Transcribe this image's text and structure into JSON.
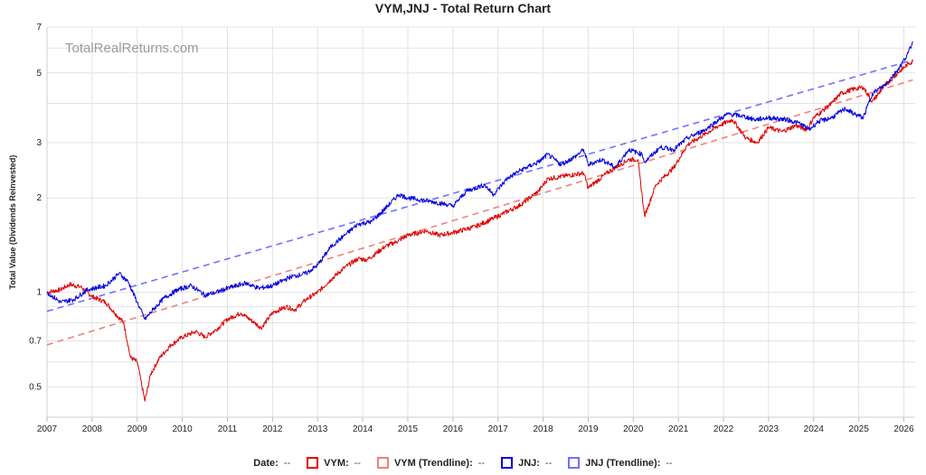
{
  "chart_data": {
    "type": "line",
    "title": "VYM,JNJ - Total Return Chart",
    "watermark": "TotalRealReturns.com",
    "ylabel": "Total Value (Dividends Reinvested)",
    "xlabel": "",
    "yscale": "log",
    "ylim": [
      0.4,
      7
    ],
    "xlim": [
      2007.0,
      2026.25
    ],
    "x_ticks": [
      "2007",
      "2008",
      "2009",
      "2010",
      "2011",
      "2012",
      "2013",
      "2014",
      "2015",
      "2016",
      "2017",
      "2018",
      "2019",
      "2020",
      "2021",
      "2022",
      "2023",
      "2024",
      "2025",
      "2026"
    ],
    "y_ticks": [
      {
        "value": 0.5,
        "label": "0.5"
      },
      {
        "value": 0.7,
        "label": "0.7"
      },
      {
        "value": 1,
        "label": "1"
      },
      {
        "value": 2,
        "label": "2"
      },
      {
        "value": 3,
        "label": "3"
      },
      {
        "value": 5,
        "label": "5"
      },
      {
        "value": 7,
        "label": "7"
      }
    ],
    "y_gridlines": [
      0.5,
      0.6,
      0.7,
      0.8,
      0.9,
      1,
      2,
      3,
      4,
      5,
      6,
      7
    ],
    "series": [
      {
        "name": "VYM",
        "color": "#e00000",
        "style": "solid",
        "points": [
          [
            2007.0,
            1.0
          ],
          [
            2007.3,
            1.02
          ],
          [
            2007.5,
            1.06
          ],
          [
            2007.75,
            1.04
          ],
          [
            2008.0,
            0.97
          ],
          [
            2008.3,
            0.93
          ],
          [
            2008.5,
            0.86
          ],
          [
            2008.7,
            0.8
          ],
          [
            2008.85,
            0.62
          ],
          [
            2009.0,
            0.6
          ],
          [
            2009.17,
            0.45
          ],
          [
            2009.3,
            0.55
          ],
          [
            2009.5,
            0.62
          ],
          [
            2009.75,
            0.68
          ],
          [
            2010.0,
            0.72
          ],
          [
            2010.3,
            0.75
          ],
          [
            2010.5,
            0.72
          ],
          [
            2010.75,
            0.76
          ],
          [
            2011.0,
            0.82
          ],
          [
            2011.3,
            0.86
          ],
          [
            2011.6,
            0.8
          ],
          [
            2011.75,
            0.77
          ],
          [
            2012.0,
            0.86
          ],
          [
            2012.3,
            0.9
          ],
          [
            2012.5,
            0.88
          ],
          [
            2012.75,
            0.95
          ],
          [
            2013.0,
            1.0
          ],
          [
            2013.3,
            1.1
          ],
          [
            2013.6,
            1.2
          ],
          [
            2013.9,
            1.28
          ],
          [
            2014.1,
            1.27
          ],
          [
            2014.5,
            1.4
          ],
          [
            2014.75,
            1.45
          ],
          [
            2015.0,
            1.52
          ],
          [
            2015.4,
            1.57
          ],
          [
            2015.7,
            1.52
          ],
          [
            2016.0,
            1.55
          ],
          [
            2016.5,
            1.62
          ],
          [
            2016.9,
            1.72
          ],
          [
            2017.5,
            1.9
          ],
          [
            2017.9,
            2.1
          ],
          [
            2018.1,
            2.3
          ],
          [
            2018.5,
            2.35
          ],
          [
            2018.9,
            2.4
          ],
          [
            2019.0,
            2.15
          ],
          [
            2019.5,
            2.45
          ],
          [
            2019.9,
            2.65
          ],
          [
            2020.1,
            2.65
          ],
          [
            2020.25,
            1.75
          ],
          [
            2020.5,
            2.2
          ],
          [
            2020.9,
            2.5
          ],
          [
            2021.2,
            2.95
          ],
          [
            2021.6,
            3.2
          ],
          [
            2021.9,
            3.4
          ],
          [
            2022.2,
            3.55
          ],
          [
            2022.5,
            3.1
          ],
          [
            2022.75,
            3.0
          ],
          [
            2023.0,
            3.35
          ],
          [
            2023.3,
            3.25
          ],
          [
            2023.6,
            3.4
          ],
          [
            2023.85,
            3.3
          ],
          [
            2024.0,
            3.6
          ],
          [
            2024.4,
            4.0
          ],
          [
            2024.6,
            4.3
          ],
          [
            2024.9,
            4.45
          ],
          [
            2025.1,
            4.5
          ],
          [
            2025.3,
            4.05
          ],
          [
            2025.6,
            4.6
          ],
          [
            2025.9,
            5.05
          ],
          [
            2026.1,
            5.35
          ],
          [
            2026.2,
            5.45
          ]
        ]
      },
      {
        "name": "VYM (Trendline)",
        "color": "#f08080",
        "style": "dashed",
        "points": [
          [
            2007.0,
            0.68
          ],
          [
            2026.2,
            4.75
          ]
        ]
      },
      {
        "name": "JNJ",
        "color": "#0000e0",
        "style": "solid",
        "points": [
          [
            2007.0,
            1.0
          ],
          [
            2007.3,
            0.93
          ],
          [
            2007.6,
            0.95
          ],
          [
            2007.9,
            1.02
          ],
          [
            2008.3,
            1.05
          ],
          [
            2008.6,
            1.15
          ],
          [
            2008.8,
            1.08
          ],
          [
            2009.0,
            0.93
          ],
          [
            2009.17,
            0.82
          ],
          [
            2009.35,
            0.88
          ],
          [
            2009.6,
            0.96
          ],
          [
            2009.9,
            1.02
          ],
          [
            2010.2,
            1.05
          ],
          [
            2010.5,
            0.98
          ],
          [
            2010.75,
            1.0
          ],
          [
            2011.0,
            1.03
          ],
          [
            2011.4,
            1.07
          ],
          [
            2011.7,
            1.03
          ],
          [
            2012.0,
            1.05
          ],
          [
            2012.4,
            1.12
          ],
          [
            2012.75,
            1.15
          ],
          [
            2013.0,
            1.22
          ],
          [
            2013.3,
            1.4
          ],
          [
            2013.6,
            1.52
          ],
          [
            2013.9,
            1.65
          ],
          [
            2014.2,
            1.68
          ],
          [
            2014.5,
            1.85
          ],
          [
            2014.8,
            2.05
          ],
          [
            2015.0,
            2.0
          ],
          [
            2015.5,
            1.95
          ],
          [
            2015.9,
            1.9
          ],
          [
            2016.0,
            1.88
          ],
          [
            2016.3,
            2.1
          ],
          [
            2016.7,
            2.2
          ],
          [
            2016.9,
            2.05
          ],
          [
            2017.2,
            2.3
          ],
          [
            2017.5,
            2.45
          ],
          [
            2017.9,
            2.6
          ],
          [
            2018.1,
            2.75
          ],
          [
            2018.4,
            2.55
          ],
          [
            2018.7,
            2.7
          ],
          [
            2018.9,
            2.85
          ],
          [
            2019.0,
            2.55
          ],
          [
            2019.3,
            2.65
          ],
          [
            2019.6,
            2.5
          ],
          [
            2019.9,
            2.85
          ],
          [
            2020.2,
            2.75
          ],
          [
            2020.25,
            2.6
          ],
          [
            2020.6,
            2.9
          ],
          [
            2020.9,
            2.85
          ],
          [
            2021.2,
            3.1
          ],
          [
            2021.6,
            3.3
          ],
          [
            2021.9,
            3.55
          ],
          [
            2022.1,
            3.7
          ],
          [
            2022.4,
            3.65
          ],
          [
            2022.7,
            3.55
          ],
          [
            2023.0,
            3.6
          ],
          [
            2023.4,
            3.55
          ],
          [
            2023.7,
            3.45
          ],
          [
            2023.9,
            3.3
          ],
          [
            2024.1,
            3.5
          ],
          [
            2024.4,
            3.6
          ],
          [
            2024.7,
            3.85
          ],
          [
            2024.9,
            3.7
          ],
          [
            2025.1,
            3.6
          ],
          [
            2025.3,
            4.3
          ],
          [
            2025.6,
            4.6
          ],
          [
            2025.9,
            5.2
          ],
          [
            2026.1,
            5.8
          ],
          [
            2026.2,
            6.3
          ]
        ]
      },
      {
        "name": "JNJ (Trendline)",
        "color": "#7070ff",
        "style": "dashed",
        "points": [
          [
            2007.0,
            0.87
          ],
          [
            2026.2,
            5.5
          ]
        ]
      }
    ],
    "legend": {
      "placement": "bottom",
      "date_label": "Date:",
      "date_value": "--",
      "items": [
        {
          "label": "VYM:",
          "value": "--",
          "color": "#e00000"
        },
        {
          "label": "VYM (Trendline):",
          "value": "--",
          "color": "#f08080"
        },
        {
          "label": "JNJ:",
          "value": "--",
          "color": "#0000e0"
        },
        {
          "label": "JNJ (Trendline):",
          "value": "--",
          "color": "#7070ff"
        }
      ]
    }
  }
}
